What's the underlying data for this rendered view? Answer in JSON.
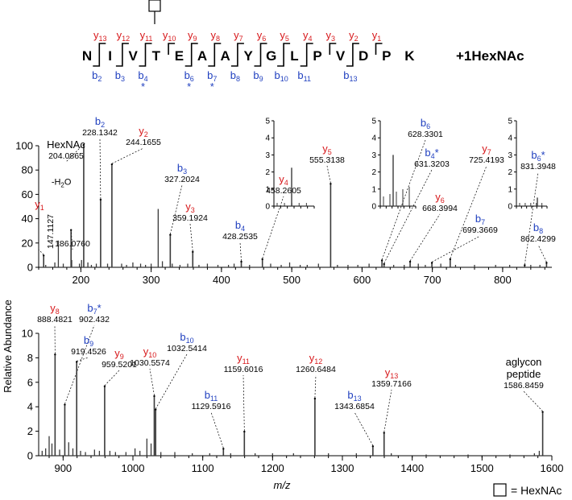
{
  "colors": {
    "y_ion": "#d7191c",
    "b_ion": "#1f3fbf",
    "text": "#000000",
    "bars": "#3a3a3a"
  },
  "peptide": {
    "residues": [
      "N",
      "I",
      "V",
      "T",
      "E",
      "A",
      "A",
      "Y",
      "G",
      "L",
      "P",
      "V",
      "D",
      "P",
      "K"
    ],
    "modification": "+1HexNAc",
    "glycan_site_index": 3,
    "y_labels": [
      {
        "n": "13",
        "after": 1
      },
      {
        "n": "12",
        "after": 2
      },
      {
        "n": "11",
        "after": 3
      },
      {
        "n": "10",
        "after": 4
      },
      {
        "n": "9",
        "after": 5
      },
      {
        "n": "8",
        "after": 6
      },
      {
        "n": "7",
        "after": 7
      },
      {
        "n": "6",
        "after": 8
      },
      {
        "n": "5",
        "after": 9
      },
      {
        "n": "4",
        "after": 10
      },
      {
        "n": "3",
        "after": 11
      },
      {
        "n": "2",
        "after": 12
      },
      {
        "n": "1",
        "after": 13
      }
    ],
    "b_labels": [
      {
        "n": "2",
        "after": 1,
        "star": false
      },
      {
        "n": "3",
        "after": 2,
        "star": false
      },
      {
        "n": "4",
        "after": 3,
        "star": true
      },
      {
        "n": "6",
        "after": 5,
        "star": true
      },
      {
        "n": "7",
        "after": 6,
        "star": true
      },
      {
        "n": "8",
        "after": 7,
        "star": false
      },
      {
        "n": "9",
        "after": 8,
        "star": false
      },
      {
        "n": "10",
        "after": 9,
        "star": false
      },
      {
        "n": "11",
        "after": 10,
        "star": false
      },
      {
        "n": "13",
        "after": 12,
        "star": false
      }
    ]
  },
  "axes": {
    "ylabel": "Relative Abundance",
    "xlabel": "m/z"
  },
  "legend": {
    "text": "= HexNAc"
  },
  "chart_data": [
    {
      "type": "bar",
      "xlim": [
        140,
        870
      ],
      "ylim": [
        0,
        100
      ],
      "xticks": [
        200,
        300,
        400,
        500,
        600,
        700,
        800
      ],
      "yticks": [
        0,
        20,
        40,
        60,
        80,
        100
      ],
      "annotations": [
        {
          "ion": "y",
          "n": "1",
          "star": false,
          "mz": "147.1127",
          "x": 147.1127,
          "y": 9
        },
        {
          "ion": "",
          "label": "",
          "mz": "186.0760",
          "x": 186.076,
          "y": 30
        },
        {
          "ion": "",
          "label": "HexNAc",
          "mz": "204.0865",
          "x": 204.0865,
          "y": 100
        },
        {
          "ion": "b",
          "n": "2",
          "star": false,
          "mz": "228.1342",
          "x": 228.1342,
          "y": 55
        },
        {
          "ion": "y",
          "n": "2",
          "star": false,
          "mz": "244.1655",
          "x": 244.1655,
          "y": 84
        },
        {
          "ion": "b",
          "n": "3",
          "star": false,
          "mz": "327.2024",
          "x": 327.2024,
          "y": 26
        },
        {
          "ion": "y",
          "n": "3",
          "star": false,
          "mz": "359.1924",
          "x": 359.1924,
          "y": 12
        },
        {
          "ion": "b",
          "n": "4",
          "star": false,
          "mz": "428.2535",
          "x": 428.2535,
          "y": 4
        },
        {
          "ion": "y",
          "n": "4",
          "star": false,
          "mz": "458.2605",
          "x": 458.2605,
          "y": 6
        },
        {
          "ion": "y",
          "n": "5",
          "star": false,
          "mz": "555.3138",
          "x": 555.3138,
          "y": 68
        },
        {
          "ion": "b",
          "n": "6",
          "star": false,
          "mz": "628.3301",
          "x": 628.3301,
          "y": 5
        },
        {
          "ion": "b",
          "n": "4",
          "star": true,
          "mz": "631.3203",
          "x": 631.3203,
          "y": 2
        },
        {
          "ion": "y",
          "n": "6",
          "star": false,
          "mz": "668.3994",
          "x": 668.3994,
          "y": 4
        },
        {
          "ion": "b",
          "n": "7",
          "star": false,
          "mz": "699.3669",
          "x": 699.3669,
          "y": 3
        },
        {
          "ion": "y",
          "n": "7",
          "star": false,
          "mz": "725.4193",
          "x": 725.4193,
          "y": 6
        },
        {
          "ion": "b",
          "n": "6",
          "star": true,
          "mz": "831.3948",
          "x": 831.3948,
          "y": 1
        },
        {
          "ion": "b",
          "n": "8",
          "star": false,
          "mz": "862.4299",
          "x": 862.4299,
          "y": 3
        }
      ],
      "inset_annotations": [
        {
          "ion": "",
          "label": "-H2O",
          "x": 186.0,
          "y": 70
        }
      ],
      "other_peaks": [
        [
          150,
          2
        ],
        [
          163,
          4
        ],
        [
          168,
          22
        ],
        [
          175,
          3
        ],
        [
          187,
          6
        ],
        [
          198,
          3
        ],
        [
          201,
          6
        ],
        [
          210,
          4
        ],
        [
          215,
          2
        ],
        [
          222,
          3
        ],
        [
          238,
          3
        ],
        [
          258,
          3
        ],
        [
          265,
          2
        ],
        [
          274,
          4
        ],
        [
          285,
          3
        ],
        [
          292,
          2
        ],
        [
          300,
          3
        ],
        [
          310,
          48
        ],
        [
          316,
          5
        ],
        [
          330,
          3
        ],
        [
          341,
          2
        ],
        [
          352,
          3
        ],
        [
          368,
          2
        ],
        [
          380,
          3
        ],
        [
          395,
          2
        ],
        [
          410,
          2
        ],
        [
          418,
          3
        ],
        [
          440,
          2
        ],
        [
          470,
          3
        ],
        [
          485,
          2
        ],
        [
          497,
          4
        ],
        [
          512,
          2
        ],
        [
          522,
          2
        ],
        [
          538,
          3
        ],
        [
          565,
          2
        ],
        [
          580,
          2
        ],
        [
          594,
          2
        ],
        [
          610,
          3
        ],
        [
          645,
          2
        ],
        [
          660,
          2
        ],
        [
          680,
          3
        ],
        [
          690,
          2
        ],
        [
          712,
          3
        ],
        [
          733,
          2
        ],
        [
          760,
          2
        ],
        [
          790,
          2
        ],
        [
          810,
          2
        ],
        [
          840,
          2
        ],
        [
          853,
          2
        ]
      ],
      "insets": [
        {
          "anchor": "y4",
          "ylim": [
            0,
            5
          ],
          "yticks": [
            0,
            1,
            2,
            3,
            4,
            5
          ]
        },
        {
          "anchor": "b6",
          "ylim": [
            0,
            5
          ],
          "yticks": [
            0,
            1,
            2,
            3,
            4,
            5
          ]
        },
        {
          "anchor": "b6*",
          "ylim": [
            0,
            5
          ],
          "yticks": [
            0,
            1,
            2,
            3,
            4,
            5
          ]
        }
      ]
    },
    {
      "type": "bar",
      "xlim": [
        865,
        1600
      ],
      "ylim": [
        0,
        10
      ],
      "xticks": [
        900,
        1000,
        1100,
        1200,
        1300,
        1400,
        1500,
        1600
      ],
      "yticks": [
        0,
        2,
        4,
        6,
        8,
        10
      ],
      "annotations": [
        {
          "ion": "y",
          "n": "8",
          "star": false,
          "mz": "888.4821",
          "x": 888.4821,
          "y": 8.2
        },
        {
          "ion": "b",
          "n": "7",
          "star": true,
          "mz": "902.432",
          "x": 902.432,
          "y": 4.1
        },
        {
          "ion": "b",
          "n": "9",
          "star": false,
          "mz": "919.4526",
          "x": 919.4526,
          "y": 7.6
        },
        {
          "ion": "y",
          "n": "9",
          "star": false,
          "mz": "959.5201",
          "x": 959.5201,
          "y": 5.6
        },
        {
          "ion": "y",
          "n": "10",
          "star": false,
          "mz": "1030.5574",
          "x": 1030.5574,
          "y": 4.8
        },
        {
          "ion": "b",
          "n": "10",
          "star": false,
          "mz": "1032.5414",
          "x": 1032.5414,
          "y": 3.7
        },
        {
          "ion": "b",
          "n": "11",
          "star": false,
          "mz": "1129.5916",
          "x": 1129.5916,
          "y": 0.5
        },
        {
          "ion": "y",
          "n": "11",
          "star": false,
          "mz": "1159.6016",
          "x": 1159.6016,
          "y": 1.9
        },
        {
          "ion": "y",
          "n": "12",
          "star": false,
          "mz": "1260.6484",
          "x": 1260.6484,
          "y": 4.6
        },
        {
          "ion": "b",
          "n": "13",
          "star": false,
          "mz": "1343.6854",
          "x": 1343.6854,
          "y": 0.7
        },
        {
          "ion": "y",
          "n": "13",
          "star": false,
          "mz": "1359.7166",
          "x": 1359.7166,
          "y": 1.8
        },
        {
          "ion": "",
          "label": "aglycon\npeptide",
          "mz": "1586.8459",
          "x": 1586.8459,
          "y": 3.5
        }
      ],
      "other_peaks": [
        [
          870,
          0.4
        ],
        [
          875,
          0.6
        ],
        [
          880,
          1.6
        ],
        [
          884,
          1.0
        ],
        [
          895,
          0.5
        ],
        [
          908,
          1.1
        ],
        [
          914,
          0.6
        ],
        [
          925,
          0.4
        ],
        [
          932,
          0.3
        ],
        [
          945,
          0.5
        ],
        [
          952,
          0.4
        ],
        [
          967,
          0.4
        ],
        [
          975,
          0.3
        ],
        [
          990,
          0.3
        ],
        [
          1003,
          0.6
        ],
        [
          1010,
          0.4
        ],
        [
          1020,
          1.4
        ],
        [
          1026,
          1.0
        ],
        [
          1040,
          0.3
        ],
        [
          1060,
          0.3
        ],
        [
          1085,
          0.2
        ],
        [
          1110,
          0.2
        ],
        [
          1140,
          0.2
        ],
        [
          1175,
          0.2
        ],
        [
          1200,
          0.2
        ],
        [
          1230,
          0.2
        ],
        [
          1280,
          0.2
        ],
        [
          1320,
          0.2
        ],
        [
          1370,
          0.2
        ],
        [
          1420,
          0.1
        ],
        [
          1480,
          0.1
        ],
        [
          1540,
          0.1
        ],
        [
          1575,
          0.2
        ],
        [
          1582,
          0.4
        ]
      ]
    }
  ]
}
